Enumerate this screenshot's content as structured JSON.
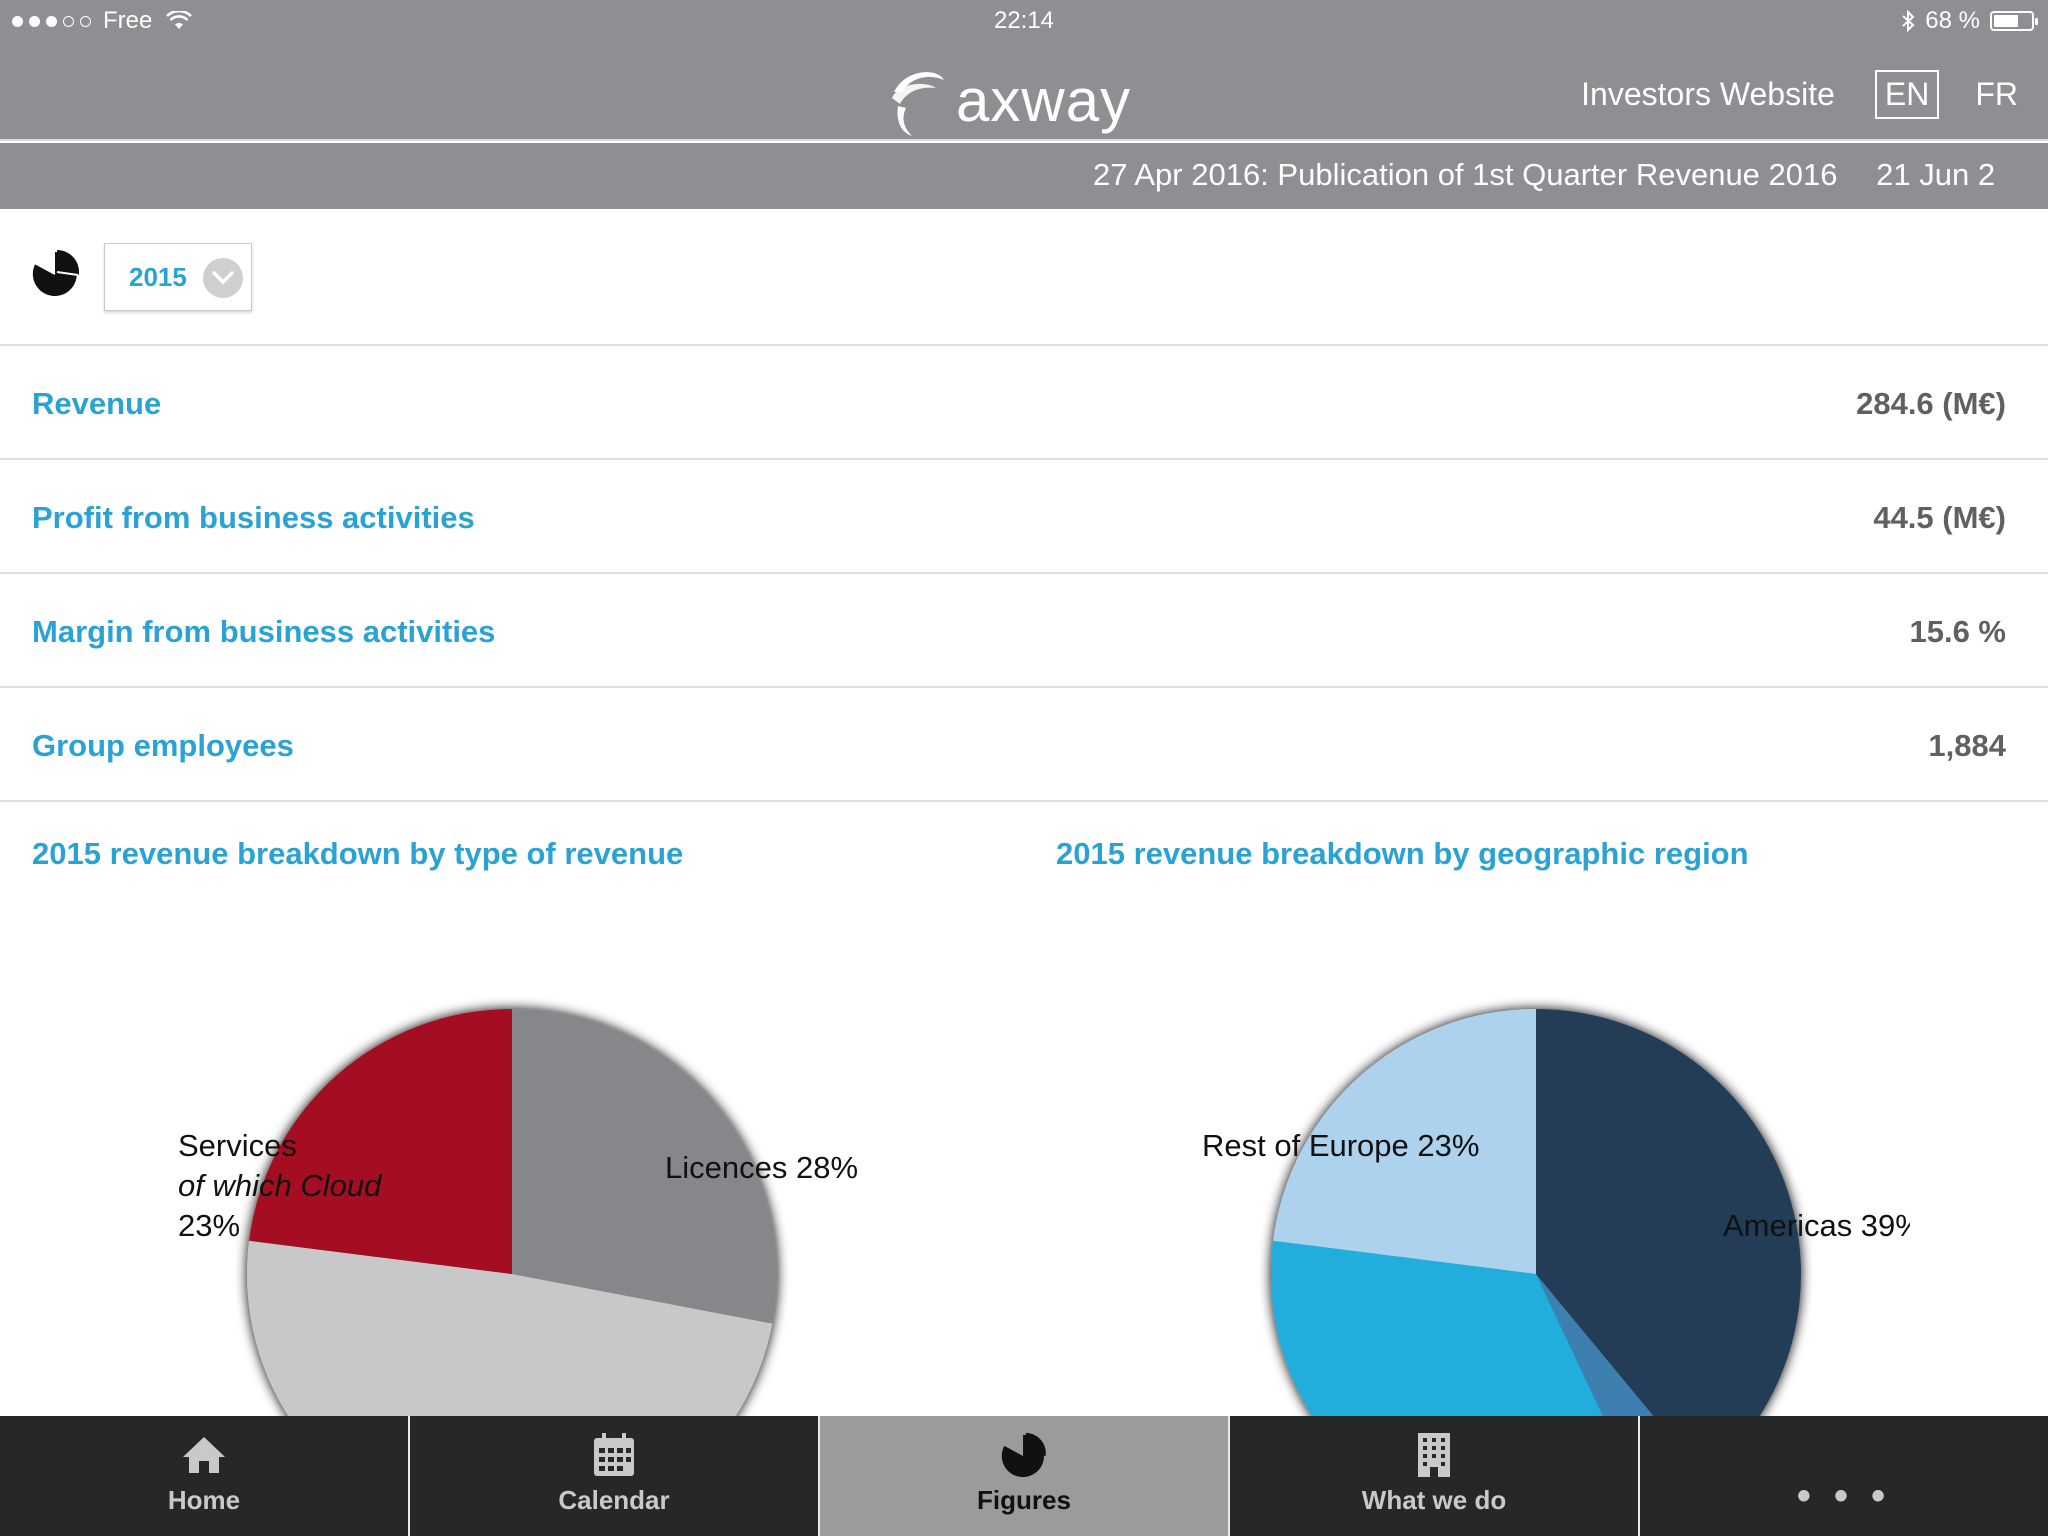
{
  "status_bar": {
    "carrier": "Free",
    "time": "22:14",
    "battery": "68 %",
    "battery_level": 0.68
  },
  "header": {
    "logo_text": "axway",
    "investors_link": "Investors Website",
    "lang_en": "EN",
    "lang_fr": "FR"
  },
  "ticker": {
    "item1": "27 Apr 2016: Publication of 1st Quarter Revenue 2016",
    "item2": "21 Jun 2"
  },
  "toolbar": {
    "year": "2015",
    "icon": "pie-chart-icon"
  },
  "metrics": [
    {
      "label": "Revenue",
      "value": "284.6 (M€)"
    },
    {
      "label": "Profit from business activities",
      "value": "44.5 (M€)"
    },
    {
      "label": "Margin from business activities",
      "value": "15.6 %"
    },
    {
      "label": "Group employees",
      "value": "1,884"
    }
  ],
  "chart_data": [
    {
      "type": "pie",
      "title": "2015 revenue breakdown by type of revenue",
      "slices": [
        {
          "label": "Licences 28%",
          "value": 28,
          "color": "#85878a"
        },
        {
          "label": "",
          "value": 49,
          "color": "#c8c8c8"
        },
        {
          "label_line1": "Services",
          "label_line2": "of which Cloud",
          "label_line3": "23%",
          "value": 23,
          "color": "#a50d22"
        }
      ]
    },
    {
      "type": "pie",
      "title": "2015 revenue breakdown by geographic region",
      "slices": [
        {
          "label": "Americas 39%",
          "value": 39,
          "color": "#223c54"
        },
        {
          "label": "",
          "value": 4,
          "color": "#3d80b0"
        },
        {
          "label": "",
          "value": 34,
          "color": "#22aedc"
        },
        {
          "label": "Rest of Europe 23%",
          "value": 23,
          "color": "#acd2ee"
        }
      ]
    }
  ],
  "tabbar": {
    "tabs": [
      {
        "label": "Home",
        "icon": "home-icon"
      },
      {
        "label": "Calendar",
        "icon": "calendar-icon"
      },
      {
        "label": "Figures",
        "icon": "pie-chart-icon",
        "active": true
      },
      {
        "label": "What we do",
        "icon": "building-icon"
      },
      {
        "label": "• • •",
        "icon": "more-icon"
      }
    ]
  }
}
